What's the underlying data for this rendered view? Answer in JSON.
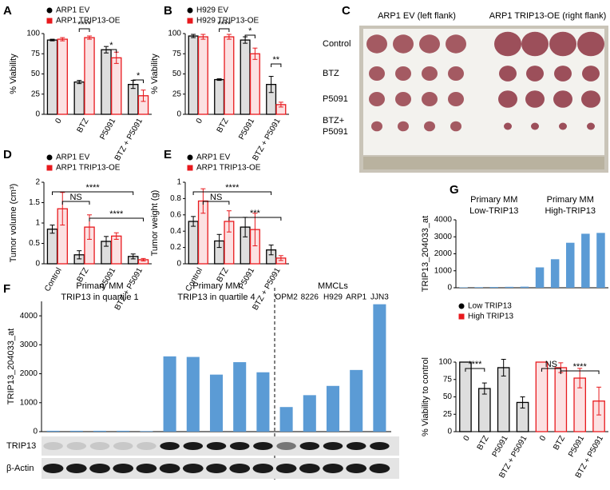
{
  "chart_data": [
    {
      "panel": "A",
      "type": "bar",
      "ylabel": "% Viability",
      "categories": [
        "0",
        "BTZ",
        "P5091",
        "BTZ + P5091"
      ],
      "series": [
        {
          "name": "ARP1 EV",
          "color": "#000000",
          "values": [
            92,
            40,
            80,
            37
          ],
          "errors": [
            1,
            2,
            4,
            5
          ]
        },
        {
          "name": "ARP1 TRIP13-OE",
          "color": "#e8191d",
          "values": [
            93,
            95,
            70,
            23
          ],
          "errors": [
            2,
            2,
            7,
            7
          ]
        }
      ],
      "ylim": [
        0,
        100
      ],
      "yticks": [
        0,
        25,
        50,
        75,
        100
      ],
      "annotations": [
        "****",
        "*",
        "*"
      ]
    },
    {
      "panel": "B",
      "type": "bar",
      "ylabel": "% Viability",
      "categories": [
        "0",
        "BTZ",
        "P5091",
        "BTZ + P5091"
      ],
      "series": [
        {
          "name": "H929 EV",
          "color": "#000000",
          "values": [
            97,
            43,
            92,
            37
          ],
          "errors": [
            2,
            1,
            4,
            10
          ]
        },
        {
          "name": "H929 TRIP13-OE",
          "color": "#e8191d",
          "values": [
            96,
            96,
            75,
            12
          ],
          "errors": [
            3,
            3,
            7,
            3
          ]
        }
      ],
      "ylim": [
        0,
        100
      ],
      "yticks": [
        0,
        25,
        50,
        75,
        100
      ],
      "annotations": [
        "****",
        "*",
        "**"
      ]
    },
    {
      "panel": "C",
      "type": "image",
      "column_labels": [
        "ARP1 EV (left flank)",
        "ARP1 TRIP13-OE (right flank)"
      ],
      "row_labels": [
        [
          "Control"
        ],
        [
          "BTZ"
        ],
        [
          "P5091"
        ],
        [
          "BTZ+",
          "P5091"
        ]
      ]
    },
    {
      "panel": "D",
      "type": "bar",
      "ylabel": "Tumor volume (cm³)",
      "categories": [
        "Control",
        "BTZ",
        "P5091",
        "BTZ + P5091"
      ],
      "series": [
        {
          "name": "ARP1 EV",
          "color": "#000000",
          "values": [
            0.85,
            0.22,
            0.55,
            0.18
          ],
          "errors": [
            0.1,
            0.1,
            0.12,
            0.06
          ]
        },
        {
          "name": "ARP1 TRIP13-OE",
          "color": "#e8191d",
          "values": [
            1.35,
            0.9,
            0.68,
            0.1
          ],
          "errors": [
            0.4,
            0.3,
            0.08,
            0.03
          ]
        }
      ],
      "ylim": [
        0,
        2
      ],
      "yticks": [
        0,
        0.5,
        1,
        1.5,
        2
      ],
      "annotations": [
        "NS",
        "****",
        "****"
      ]
    },
    {
      "panel": "E",
      "type": "bar",
      "ylabel": "Tumor weight (g)",
      "categories": [
        "Control",
        "BTZ",
        "P5091",
        "BTZ + P5091"
      ],
      "series": [
        {
          "name": "ARP1 EV",
          "color": "#000000",
          "values": [
            0.52,
            0.28,
            0.45,
            0.17
          ],
          "errors": [
            0.06,
            0.08,
            0.12,
            0.06
          ]
        },
        {
          "name": "ARP1 TRIP13-OE",
          "color": "#e8191d",
          "values": [
            0.77,
            0.52,
            0.42,
            0.07
          ],
          "errors": [
            0.15,
            0.13,
            0.2,
            0.03
          ]
        }
      ],
      "ylim": [
        0,
        1
      ],
      "yticks": [
        0,
        0.2,
        0.4,
        0.6,
        0.8,
        1
      ],
      "annotations": [
        "NS",
        "****",
        "***"
      ]
    },
    {
      "panel": "F",
      "type": "bar",
      "ylabel": "TRIP13_204033_at",
      "categories": [
        null,
        null,
        null,
        null,
        null,
        null,
        null,
        null,
        null,
        null,
        "OPM2",
        "8226",
        "H929",
        "ARP1",
        "JJN3"
      ],
      "series": [
        {
          "color": "#5b9bd5",
          "values": [
            30,
            30,
            30,
            30,
            20,
            2600,
            2580,
            1970,
            2400,
            2050,
            850,
            1260,
            1580,
            2130,
            4400
          ]
        }
      ],
      "ylim": [
        0,
        4500
      ],
      "yticks": [
        0,
        1000,
        2000,
        3000,
        4000
      ],
      "groups": [
        {
          "label": "Primary MM",
          "sublabel": "TRIP13 in quartile 1"
        },
        {
          "label": "Primary MM",
          "sublabel": "TRIP13 in quartile 4"
        },
        {
          "label": "MMCLs"
        }
      ],
      "blot_labels": [
        "TRIP13",
        "β-Actin"
      ]
    },
    {
      "panel": "G",
      "type": "bar",
      "ylabel": "TRIP13_204033_at",
      "categories": [
        null,
        null,
        null,
        null,
        null,
        null,
        null,
        null,
        null,
        null
      ],
      "series": [
        {
          "color": "#5b9bd5",
          "values": [
            25,
            35,
            45,
            55,
            65,
            1200,
            1680,
            2650,
            3180,
            3230
          ]
        }
      ],
      "ylim": [
        0,
        4000
      ],
      "yticks": [
        0,
        1000,
        2000,
        3000,
        4000
      ],
      "groups": [
        {
          "label": "Primary MM",
          "sublabel": "Low-TRIP13"
        },
        {
          "label": "Primary MM",
          "sublabel": "High-TRIP13"
        }
      ]
    },
    {
      "type": "bar",
      "ylabel": "% Viability to control",
      "categories": [
        "0",
        "BTZ",
        "P5091",
        "BTZ + P5091",
        "0",
        "BTZ",
        "P5091",
        "BTZ + P5091"
      ],
      "series": [
        {
          "name": "Low TRIP13",
          "color": "#000000",
          "values": [
            100,
            62,
            92,
            42,
            null,
            null,
            null,
            null
          ],
          "errors": [
            0,
            8,
            12,
            8,
            null,
            null,
            null,
            null
          ]
        },
        {
          "name": "High TRIP13",
          "color": "#e8191d",
          "values": [
            null,
            null,
            null,
            null,
            100,
            92,
            77,
            44
          ],
          "errors": [
            null,
            null,
            null,
            null,
            0,
            7,
            14,
            20
          ]
        }
      ],
      "ylim": [
        0,
        100
      ],
      "yticks": [
        0,
        25,
        50,
        75,
        100
      ],
      "annotations": [
        "****",
        "NS",
        "****"
      ]
    }
  ]
}
